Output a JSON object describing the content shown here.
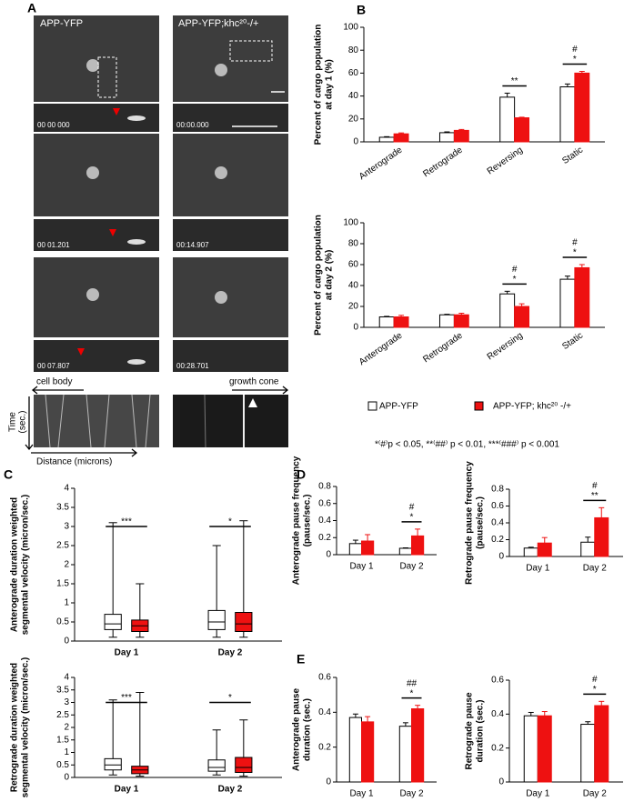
{
  "panel_letters": [
    "A",
    "B",
    "C",
    "D",
    "E"
  ],
  "panel_a": {
    "left_title": "APP-YFP",
    "right_title": "APP-YFP;khc²⁰-/+",
    "timestamps_left": [
      "00 00 000",
      "00 01.201",
      "00 07.807"
    ],
    "timestamps_right": [
      "00:00.000",
      "00:14.907",
      "00:28.701"
    ],
    "cell_body": "cell body",
    "growth_cone": "growth cone",
    "time_label": [
      "Time",
      "(sec.)"
    ],
    "distance_label": "Distance (microns)"
  },
  "footnote": "*⁽#⁾p < 0.05, **⁽##⁾ p < 0.01, ***⁽###⁾ p < 0.001",
  "chart_data": [
    {
      "type": "bar",
      "ylabel": [
        "Percent of cargo population",
        "at day 1 (%)"
      ],
      "categories": [
        "Anterograde",
        "Retrograde",
        "Reversing",
        "Static"
      ],
      "series": [
        {
          "name": "APP-YFP",
          "color": "#ffffff",
          "values": [
            4,
            8,
            39,
            48
          ],
          "errors": [
            0.5,
            0.7,
            3.5,
            2.5
          ]
        },
        {
          "name": "APP-YFP; khc²⁰ -/+",
          "color": "#ee1111",
          "values": [
            7,
            10,
            21,
            60
          ],
          "errors": [
            0.8,
            0.8,
            0.5,
            1.5
          ]
        }
      ],
      "annotations": [
        null,
        null,
        [
          "**"
        ],
        [
          "#",
          "*"
        ]
      ],
      "ylim": [
        0,
        100
      ],
      "yticks": [
        0,
        20,
        40,
        60,
        80,
        100
      ]
    },
    {
      "type": "bar",
      "ylabel": [
        "Percent of cargo population",
        "at day 2 (%)"
      ],
      "categories": [
        "Anterograde",
        "Retrograde",
        "Reversing",
        "Static"
      ],
      "series": [
        {
          "color": "#ffffff",
          "values": [
            10,
            12,
            32,
            46
          ],
          "errors": [
            0.5,
            0.5,
            2.5,
            3
          ]
        },
        {
          "color": "#ee1111",
          "values": [
            10,
            12,
            20,
            57
          ],
          "errors": [
            1.5,
            1.5,
            2.5,
            3
          ]
        }
      ],
      "annotations": [
        null,
        null,
        [
          "#",
          "*"
        ],
        [
          "#",
          "*"
        ]
      ],
      "ylim": [
        0,
        100
      ],
      "yticks": [
        0,
        20,
        40,
        60,
        80,
        100
      ]
    },
    {
      "type": "box",
      "ylabel": [
        "Anterograde duration weighted",
        "segmental velocity (micron/sec.)"
      ],
      "categories": [
        "Day 1",
        "Day 2"
      ],
      "series": [
        {
          "color": "#ffffff",
          "whisker_low": [
            0.1,
            0.1
          ],
          "q1": [
            0.3,
            0.3
          ],
          "median": [
            0.45,
            0.5
          ],
          "q3": [
            0.7,
            0.8
          ],
          "whisker_high": [
            3.1,
            2.5
          ]
        },
        {
          "color": "#ee1111",
          "whisker_low": [
            0.1,
            0.1
          ],
          "q1": [
            0.25,
            0.25
          ],
          "median": [
            0.4,
            0.45
          ],
          "q3": [
            0.55,
            0.75
          ],
          "whisker_high": [
            1.5,
            3.15
          ]
        }
      ],
      "annotations": [
        [
          "***"
        ],
        [
          "*"
        ]
      ],
      "ylim": [
        0,
        4
      ],
      "yticks": [
        0,
        0.5,
        1,
        1.5,
        2,
        2.5,
        3,
        3.5,
        4
      ]
    },
    {
      "type": "box",
      "ylabel": [
        "Retrograde duration weighted",
        "segmental velocity (micron/sec.)"
      ],
      "categories": [
        "Day 1",
        "Day 2"
      ],
      "series": [
        {
          "color": "#ffffff",
          "whisker_low": [
            0.1,
            0.1
          ],
          "q1": [
            0.3,
            0.25
          ],
          "median": [
            0.5,
            0.4
          ],
          "q3": [
            0.75,
            0.7
          ],
          "whisker_high": [
            3.1,
            1.9
          ]
        },
        {
          "color": "#ee1111",
          "whisker_low": [
            0.05,
            0.05
          ],
          "q1": [
            0.15,
            0.2
          ],
          "median": [
            0.3,
            0.4
          ],
          "q3": [
            0.45,
            0.8
          ],
          "whisker_high": [
            3.4,
            2.3
          ]
        }
      ],
      "annotations": [
        [
          "***"
        ],
        [
          "*"
        ]
      ],
      "ylim": [
        0,
        4
      ],
      "yticks": [
        0,
        0.5,
        1,
        1.5,
        2,
        2.5,
        3,
        3.5,
        4
      ]
    },
    {
      "type": "bar",
      "ylabel": [
        "Anterograde pause frequency",
        "(pause/sec.)"
      ],
      "categories": [
        "Day 1",
        "Day 2"
      ],
      "series": [
        {
          "color": "#ffffff",
          "values": [
            0.13,
            0.075
          ],
          "errors": [
            0.04,
            0.005
          ]
        },
        {
          "color": "#ee1111",
          "values": [
            0.16,
            0.22
          ],
          "errors": [
            0.075,
            0.08
          ]
        }
      ],
      "annotations": [
        null,
        [
          "#",
          "*"
        ]
      ],
      "ylim": [
        0,
        0.8
      ],
      "yticks": [
        0,
        0.2,
        0.4,
        0.6,
        0.8
      ]
    },
    {
      "type": "bar",
      "ylabel": [
        "Retrograde pause frequency",
        "(pause/sec.)"
      ],
      "categories": [
        "Day 1",
        "Day 2"
      ],
      "series": [
        {
          "color": "#ffffff",
          "values": [
            0.1,
            0.17
          ],
          "errors": [
            0.01,
            0.06
          ]
        },
        {
          "color": "#ee1111",
          "values": [
            0.16,
            0.46
          ],
          "errors": [
            0.065,
            0.12
          ]
        }
      ],
      "annotations": [
        null,
        [
          "#",
          "**"
        ]
      ],
      "ylim": [
        0,
        0.8
      ],
      "yticks": [
        0,
        0.2,
        0.4,
        0.6,
        0.8
      ]
    },
    {
      "type": "bar",
      "ylabel": [
        "Anterograde pause",
        "duration (sec.)"
      ],
      "categories": [
        "Day 1",
        "Day 2"
      ],
      "series": [
        {
          "color": "#ffffff",
          "values": [
            0.37,
            0.32
          ],
          "errors": [
            0.02,
            0.02
          ]
        },
        {
          "color": "#ee1111",
          "values": [
            0.345,
            0.42
          ],
          "errors": [
            0.03,
            0.02
          ]
        }
      ],
      "annotations": [
        null,
        [
          "##",
          "*"
        ]
      ],
      "ylim": [
        0,
        0.6
      ],
      "yticks": [
        0,
        0.2,
        0.4,
        0.6
      ]
    },
    {
      "type": "bar",
      "ylabel": [
        "Retrograde pause",
        "duration (sec.)"
      ],
      "categories": [
        "Day 1",
        "Day 2"
      ],
      "series": [
        {
          "color": "#ffffff",
          "values": [
            0.39,
            0.34
          ],
          "errors": [
            0.02,
            0.015
          ]
        },
        {
          "color": "#ee1111",
          "values": [
            0.39,
            0.45
          ],
          "errors": [
            0.025,
            0.025
          ]
        }
      ],
      "annotations": [
        null,
        [
          "#",
          "*"
        ]
      ],
      "ylim": [
        0,
        0.6
      ],
      "yticks": [
        0,
        0.2,
        0.4,
        0.6
      ]
    }
  ]
}
